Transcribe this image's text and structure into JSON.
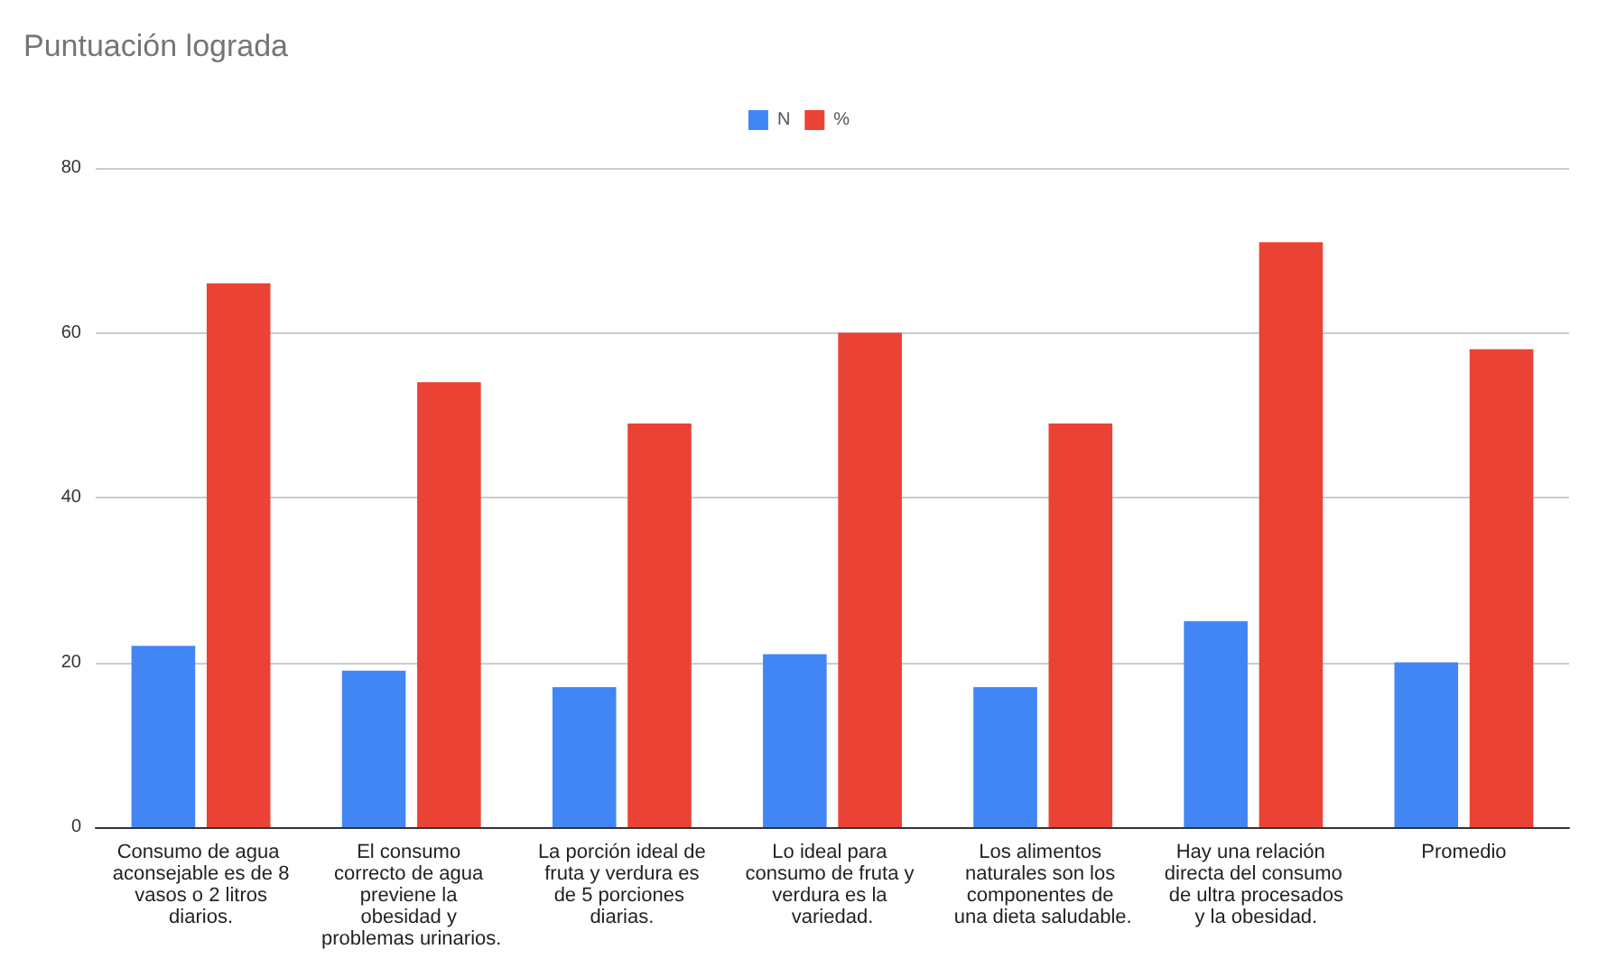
{
  "chart_data": {
    "type": "bar",
    "title": "Puntuación lograda",
    "categories": [
      "Consumo de agua aconsejable es de 8 vasos o 2 litros diarios.",
      "El consumo correcto de agua previene la obesidad y problemas urinarios.",
      "La porción ideal de fruta y verdura es de 5 porciones diarias.",
      "Lo ideal para consumo de fruta y verdura es la variedad.",
      "Los alimentos naturales son los componentes de una dieta saludable.",
      "Hay una relación directa del consumo de ultra procesados y la obesidad.",
      "Promedio"
    ],
    "series": [
      {
        "name": "N",
        "color": "#4285f4",
        "values": [
          22,
          19,
          17,
          21,
          17,
          25,
          20
        ]
      },
      {
        "name": "%",
        "color": "#ea4335",
        "values": [
          66,
          54,
          49,
          60,
          49,
          71,
          58
        ]
      }
    ],
    "ylim": [
      0,
      80
    ],
    "yticks": [
      0,
      20,
      40,
      60,
      80
    ],
    "grid": "y",
    "legend": "top"
  }
}
